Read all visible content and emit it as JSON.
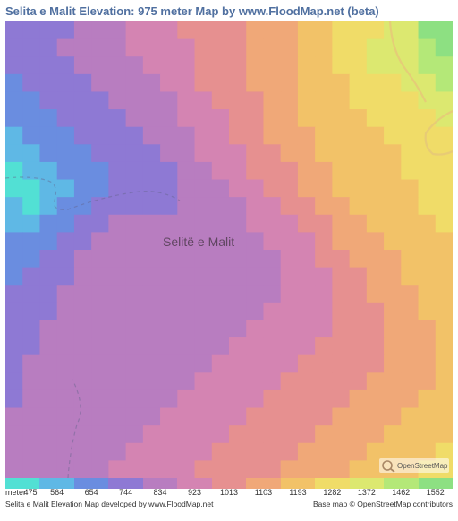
{
  "title": "Selita e Malit Elevation: 975 meter Map by www.FloodMap.net (beta)",
  "place_label": "Selitë e Malit",
  "osm_label": "OpenStreetMap",
  "credits": {
    "left": "Selita e Malit Elevation Map developed by www.FloodMap.net",
    "right": "Base map © OpenStreetMap contributors"
  },
  "legend": {
    "prefix": "meter",
    "values": [
      "475",
      "564",
      "654",
      "744",
      "834",
      "923",
      "1013",
      "1103",
      "1193",
      "1282",
      "1372",
      "1462",
      "1552"
    ],
    "colors": [
      "#52e0d4",
      "#5fb8e5",
      "#6a8de0",
      "#8e79d4",
      "#b87dc0",
      "#d484b2",
      "#e69090",
      "#f0a878",
      "#f2c268",
      "#f0dc68",
      "#dce870",
      "#b4e878",
      "#8de082"
    ]
  },
  "map": {
    "type": "elevation-raster",
    "grid_size": 26,
    "background": "#ffffff",
    "colors": {
      "cyan": "#52e0d4",
      "blue": "#5fb8e5",
      "indigo": "#6a8de0",
      "violet": "#8e79d4",
      "magenta": "#b87dc0",
      "pink": "#d484b2",
      "salmon": "#e69090",
      "orange": "#f0a878",
      "gold": "#f2c268",
      "yellow": "#f0dc68",
      "lime": "#dce870",
      "green": "#b4e878",
      "emerald": "#8de082"
    },
    "cells": [
      [
        3,
        3,
        3,
        3,
        4,
        4,
        4,
        5,
        5,
        5,
        6,
        6,
        6,
        6,
        7,
        7,
        7,
        8,
        8,
        9,
        9,
        9,
        10,
        10,
        12,
        12
      ],
      [
        3,
        3,
        3,
        4,
        4,
        4,
        4,
        5,
        5,
        5,
        5,
        6,
        6,
        6,
        7,
        7,
        7,
        8,
        8,
        9,
        9,
        10,
        10,
        10,
        11,
        12
      ],
      [
        3,
        3,
        3,
        3,
        4,
        4,
        4,
        4,
        5,
        5,
        5,
        6,
        6,
        6,
        7,
        7,
        7,
        8,
        8,
        9,
        9,
        10,
        10,
        10,
        11,
        11
      ],
      [
        2,
        3,
        3,
        3,
        3,
        4,
        4,
        4,
        4,
        5,
        5,
        6,
        6,
        6,
        7,
        7,
        7,
        8,
        8,
        8,
        9,
        9,
        9,
        10,
        10,
        11
      ],
      [
        2,
        2,
        3,
        3,
        3,
        3,
        4,
        4,
        4,
        4,
        5,
        5,
        6,
        6,
        6,
        7,
        7,
        8,
        8,
        8,
        9,
        9,
        9,
        9,
        10,
        10
      ],
      [
        2,
        2,
        2,
        3,
        3,
        3,
        3,
        4,
        4,
        4,
        5,
        5,
        5,
        6,
        6,
        7,
        7,
        8,
        8,
        8,
        8,
        9,
        9,
        9,
        9,
        10
      ],
      [
        1,
        2,
        2,
        2,
        3,
        3,
        3,
        3,
        4,
        4,
        4,
        5,
        5,
        6,
        6,
        7,
        7,
        7,
        8,
        8,
        8,
        8,
        9,
        9,
        9,
        9
      ],
      [
        1,
        1,
        2,
        2,
        2,
        3,
        3,
        3,
        3,
        4,
        4,
        5,
        5,
        5,
        6,
        6,
        7,
        7,
        8,
        8,
        8,
        8,
        8,
        9,
        9,
        9
      ],
      [
        0,
        1,
        1,
        2,
        2,
        2,
        3,
        3,
        3,
        3,
        4,
        4,
        5,
        5,
        6,
        6,
        6,
        7,
        7,
        8,
        8,
        8,
        8,
        9,
        9,
        9
      ],
      [
        0,
        0,
        1,
        1,
        2,
        2,
        3,
        3,
        3,
        3,
        4,
        4,
        4,
        5,
        5,
        6,
        6,
        7,
        7,
        8,
        8,
        8,
        8,
        8,
        9,
        9
      ],
      [
        1,
        0,
        1,
        2,
        2,
        3,
        3,
        3,
        3,
        3,
        4,
        4,
        4,
        4,
        5,
        5,
        6,
        6,
        7,
        7,
        8,
        8,
        8,
        8,
        9,
        9
      ],
      [
        1,
        1,
        2,
        2,
        3,
        3,
        4,
        4,
        4,
        4,
        4,
        4,
        4,
        4,
        5,
        5,
        5,
        6,
        6,
        7,
        7,
        8,
        8,
        8,
        8,
        9
      ],
      [
        2,
        2,
        2,
        3,
        3,
        4,
        4,
        4,
        4,
        4,
        4,
        4,
        4,
        4,
        4,
        5,
        5,
        5,
        6,
        7,
        7,
        7,
        8,
        8,
        8,
        8
      ],
      [
        2,
        2,
        3,
        3,
        4,
        4,
        4,
        4,
        4,
        4,
        4,
        4,
        4,
        4,
        4,
        4,
        5,
        5,
        6,
        6,
        7,
        7,
        7,
        8,
        8,
        8
      ],
      [
        2,
        3,
        3,
        3,
        4,
        4,
        4,
        4,
        4,
        4,
        4,
        4,
        4,
        4,
        4,
        4,
        5,
        5,
        5,
        6,
        6,
        7,
        7,
        8,
        8,
        8
      ],
      [
        3,
        3,
        3,
        4,
        4,
        4,
        4,
        4,
        4,
        4,
        4,
        4,
        4,
        4,
        4,
        4,
        5,
        5,
        5,
        6,
        6,
        7,
        7,
        7,
        8,
        8
      ],
      [
        3,
        3,
        3,
        4,
        4,
        4,
        4,
        4,
        4,
        4,
        4,
        4,
        4,
        4,
        4,
        5,
        5,
        5,
        5,
        6,
        6,
        6,
        7,
        7,
        8,
        8
      ],
      [
        3,
        3,
        4,
        4,
        4,
        4,
        4,
        4,
        4,
        4,
        4,
        4,
        4,
        4,
        5,
        5,
        5,
        5,
        5,
        6,
        6,
        6,
        7,
        7,
        7,
        8
      ],
      [
        3,
        3,
        4,
        4,
        4,
        4,
        4,
        4,
        4,
        4,
        4,
        4,
        4,
        5,
        5,
        5,
        5,
        5,
        6,
        6,
        6,
        6,
        7,
        7,
        7,
        8
      ],
      [
        3,
        4,
        4,
        4,
        4,
        4,
        4,
        4,
        4,
        4,
        4,
        4,
        5,
        5,
        5,
        5,
        5,
        6,
        6,
        6,
        6,
        6,
        7,
        7,
        7,
        8
      ],
      [
        3,
        4,
        4,
        4,
        4,
        4,
        4,
        4,
        4,
        4,
        4,
        5,
        5,
        5,
        5,
        5,
        6,
        6,
        6,
        6,
        6,
        7,
        7,
        7,
        7,
        8
      ],
      [
        3,
        4,
        4,
        4,
        4,
        4,
        4,
        4,
        4,
        4,
        5,
        5,
        5,
        5,
        5,
        6,
        6,
        6,
        6,
        6,
        7,
        7,
        7,
        7,
        8,
        8
      ],
      [
        4,
        4,
        4,
        4,
        4,
        4,
        4,
        4,
        4,
        5,
        5,
        5,
        5,
        5,
        6,
        6,
        6,
        6,
        6,
        7,
        7,
        7,
        7,
        8,
        8,
        8
      ],
      [
        4,
        4,
        4,
        4,
        4,
        4,
        4,
        4,
        5,
        5,
        5,
        5,
        5,
        6,
        6,
        6,
        6,
        6,
        7,
        7,
        7,
        7,
        8,
        8,
        8,
        8
      ],
      [
        4,
        4,
        4,
        4,
        4,
        4,
        4,
        5,
        5,
        5,
        5,
        5,
        6,
        6,
        6,
        6,
        6,
        7,
        7,
        7,
        7,
        8,
        8,
        8,
        8,
        9
      ],
      [
        4,
        4,
        4,
        4,
        4,
        4,
        5,
        5,
        5,
        5,
        5,
        6,
        6,
        6,
        6,
        6,
        7,
        7,
        7,
        7,
        8,
        8,
        8,
        8,
        9,
        9
      ]
    ],
    "boundary_color": "rgba(100,100,140,0.5)",
    "road_color": "rgba(230,200,120,0.9)"
  }
}
